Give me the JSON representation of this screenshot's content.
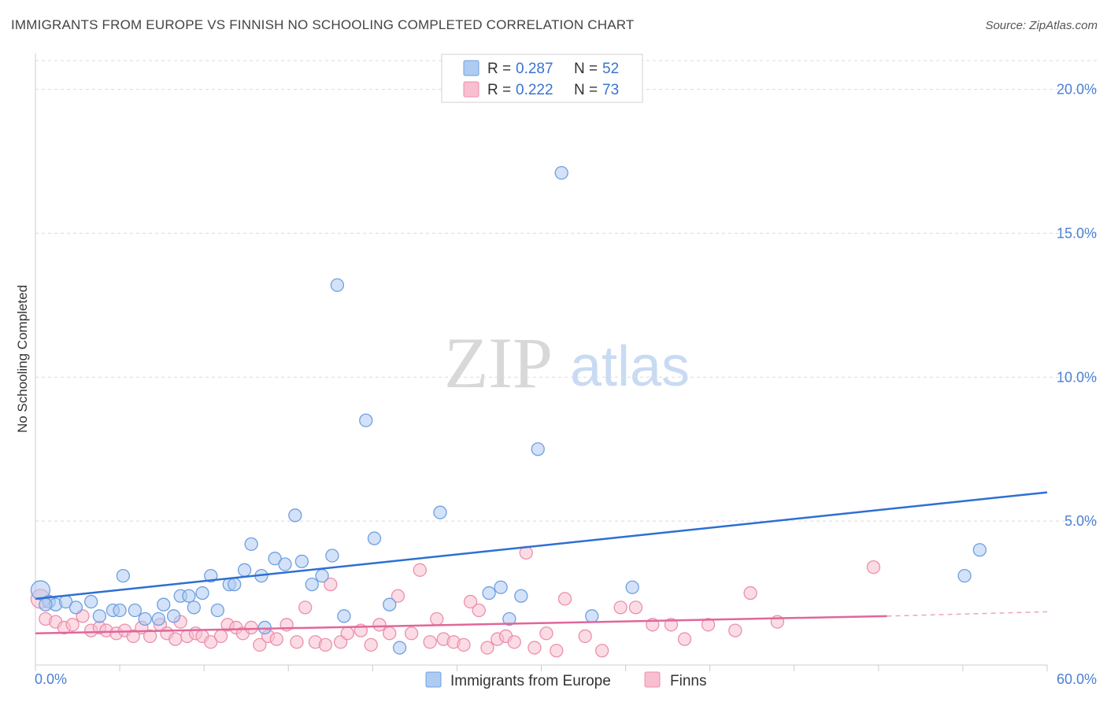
{
  "title": "IMMIGRANTS FROM EUROPE VS FINNISH NO SCHOOLING COMPLETED CORRELATION CHART",
  "source": "Source: ZipAtlas.com",
  "watermark": {
    "zip": "ZIP",
    "atlas": "atlas"
  },
  "colors": {
    "blue_fill": "#aecbf2",
    "blue_stroke": "#6f9fe0",
    "blue_line": "#2e6fd3",
    "pink_fill": "#f7bfd0",
    "pink_stroke": "#ec8fab",
    "pink_line": "#e0679a",
    "grid": "#d9d9e3",
    "tick_text": "#4a7fd4"
  },
  "legend": {
    "rows": [
      {
        "r_label": "R = ",
        "r_value": "0.287",
        "n_label": "N = ",
        "n_value": "52",
        "series": "blue"
      },
      {
        "r_label": "R = ",
        "r_value": "0.222",
        "n_label": "N = ",
        "n_value": "73",
        "series": "pink"
      }
    ]
  },
  "chart_data": {
    "type": "scatter",
    "title": "IMMIGRANTS FROM EUROPE VS FINNISH NO SCHOOLING COMPLETED CORRELATION CHART",
    "xlabel": "",
    "ylabel": "No Schooling Completed",
    "xlim": [
      0,
      60
    ],
    "ylim": [
      0,
      21
    ],
    "x_tick_labels": [
      {
        "value": 0,
        "label": "0.0%"
      },
      {
        "value": 60,
        "label": "60.0%"
      }
    ],
    "y_tick_labels": [
      {
        "value": 5,
        "label": "5.0%"
      },
      {
        "value": 10,
        "label": "10.0%"
      },
      {
        "value": 15,
        "label": "15.0%"
      },
      {
        "value": 20,
        "label": "20.0%"
      }
    ],
    "series": [
      {
        "name": "Immigrants from Europe",
        "color": "blue",
        "trend": {
          "x": [
            0,
            60
          ],
          "y": [
            2.3,
            6.0
          ]
        },
        "points": [
          [
            0.3,
            2.6
          ],
          [
            0.8,
            2.2
          ],
          [
            1.2,
            2.1
          ],
          [
            1.8,
            2.2
          ],
          [
            2.4,
            2.0
          ],
          [
            3.3,
            2.2
          ],
          [
            3.8,
            1.7
          ],
          [
            4.6,
            1.9
          ],
          [
            5.0,
            1.9
          ],
          [
            5.2,
            3.1
          ],
          [
            5.9,
            1.9
          ],
          [
            6.5,
            1.6
          ],
          [
            7.3,
            1.6
          ],
          [
            7.6,
            2.1
          ],
          [
            8.2,
            1.7
          ],
          [
            8.6,
            2.4
          ],
          [
            9.1,
            2.4
          ],
          [
            9.4,
            2.0
          ],
          [
            9.9,
            2.5
          ],
          [
            10.4,
            3.1
          ],
          [
            10.8,
            1.9
          ],
          [
            11.5,
            2.8
          ],
          [
            11.8,
            2.8
          ],
          [
            12.4,
            3.3
          ],
          [
            12.8,
            4.2
          ],
          [
            13.4,
            3.1
          ],
          [
            13.6,
            1.3
          ],
          [
            14.2,
            3.7
          ],
          [
            14.8,
            3.5
          ],
          [
            15.4,
            5.2
          ],
          [
            15.8,
            3.6
          ],
          [
            16.4,
            2.8
          ],
          [
            17.0,
            3.1
          ],
          [
            17.6,
            3.8
          ],
          [
            17.9,
            13.2
          ],
          [
            18.3,
            1.7
          ],
          [
            19.6,
            8.5
          ],
          [
            20.1,
            4.4
          ],
          [
            21.0,
            2.1
          ],
          [
            21.6,
            0.6
          ],
          [
            24.0,
            5.3
          ],
          [
            26.9,
            2.5
          ],
          [
            27.6,
            2.7
          ],
          [
            28.1,
            1.6
          ],
          [
            28.8,
            2.4
          ],
          [
            29.8,
            7.5
          ],
          [
            31.2,
            17.1
          ],
          [
            33.0,
            1.7
          ],
          [
            35.4,
            2.7
          ],
          [
            55.1,
            3.1
          ],
          [
            56.0,
            4.0
          ],
          [
            0.6,
            2.1
          ]
        ]
      },
      {
        "name": "Finns",
        "color": "pink",
        "trend": {
          "x": [
            0,
            50.5
          ],
          "y": [
            1.1,
            1.7
          ]
        },
        "trend_extension": {
          "x": [
            50.5,
            60
          ],
          "y": [
            1.7,
            1.85
          ]
        },
        "points": [
          [
            0.3,
            2.3
          ],
          [
            0.6,
            1.6
          ],
          [
            1.2,
            1.5
          ],
          [
            1.7,
            1.3
          ],
          [
            2.2,
            1.4
          ],
          [
            2.8,
            1.7
          ],
          [
            3.3,
            1.2
          ],
          [
            3.8,
            1.3
          ],
          [
            4.2,
            1.2
          ],
          [
            4.8,
            1.1
          ],
          [
            5.3,
            1.2
          ],
          [
            5.8,
            1.0
          ],
          [
            6.3,
            1.3
          ],
          [
            6.8,
            1.0
          ],
          [
            7.4,
            1.4
          ],
          [
            7.8,
            1.1
          ],
          [
            8.3,
            0.9
          ],
          [
            8.6,
            1.5
          ],
          [
            9.0,
            1.0
          ],
          [
            9.5,
            1.1
          ],
          [
            9.9,
            1.0
          ],
          [
            10.4,
            0.8
          ],
          [
            11.0,
            1.0
          ],
          [
            11.4,
            1.4
          ],
          [
            11.9,
            1.3
          ],
          [
            12.3,
            1.1
          ],
          [
            12.8,
            1.3
          ],
          [
            13.3,
            0.7
          ],
          [
            13.8,
            1.0
          ],
          [
            14.3,
            0.9
          ],
          [
            14.9,
            1.4
          ],
          [
            15.5,
            0.8
          ],
          [
            16.0,
            2.0
          ],
          [
            16.6,
            0.8
          ],
          [
            17.2,
            0.7
          ],
          [
            17.5,
            2.8
          ],
          [
            18.1,
            0.8
          ],
          [
            18.5,
            1.1
          ],
          [
            19.3,
            1.2
          ],
          [
            19.9,
            0.7
          ],
          [
            20.4,
            1.4
          ],
          [
            21.0,
            1.1
          ],
          [
            21.5,
            2.4
          ],
          [
            22.3,
            1.1
          ],
          [
            22.8,
            3.3
          ],
          [
            23.4,
            0.8
          ],
          [
            23.8,
            1.6
          ],
          [
            24.2,
            0.9
          ],
          [
            24.8,
            0.8
          ],
          [
            25.4,
            0.7
          ],
          [
            25.8,
            2.2
          ],
          [
            26.3,
            1.9
          ],
          [
            26.8,
            0.6
          ],
          [
            27.4,
            0.9
          ],
          [
            27.9,
            1.0
          ],
          [
            28.4,
            0.8
          ],
          [
            29.1,
            3.9
          ],
          [
            29.6,
            0.6
          ],
          [
            30.3,
            1.1
          ],
          [
            30.9,
            0.5
          ],
          [
            31.4,
            2.3
          ],
          [
            32.6,
            1.0
          ],
          [
            33.6,
            0.5
          ],
          [
            34.7,
            2.0
          ],
          [
            35.6,
            2.0
          ],
          [
            36.6,
            1.4
          ],
          [
            37.7,
            1.4
          ],
          [
            38.5,
            0.9
          ],
          [
            39.9,
            1.4
          ],
          [
            41.5,
            1.2
          ],
          [
            42.4,
            2.5
          ],
          [
            44.0,
            1.5
          ],
          [
            49.7,
            3.4
          ]
        ]
      }
    ]
  },
  "bottom_legend": [
    {
      "label": "Immigrants from Europe",
      "color": "blue"
    },
    {
      "label": "Finns",
      "color": "pink"
    }
  ]
}
